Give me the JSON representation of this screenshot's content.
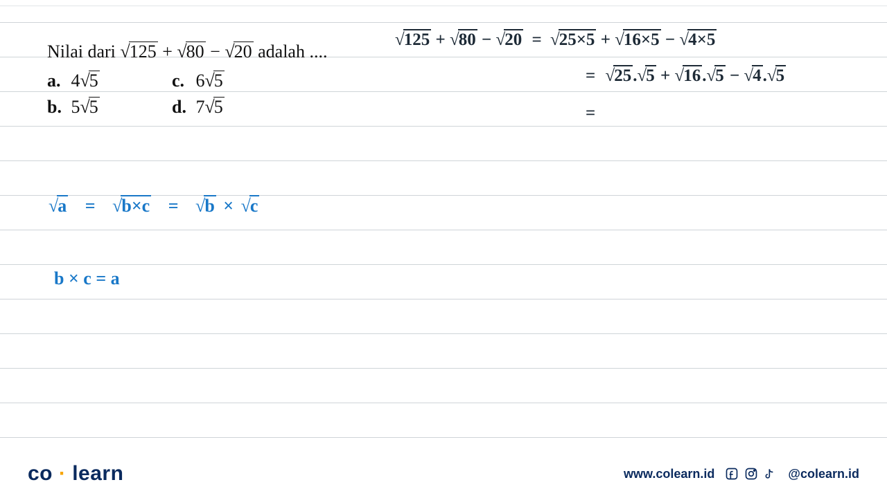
{
  "colors": {
    "rule_line": "#cfd4d8",
    "handwriting_blue": "#1978c8",
    "handwriting_dark": "#1d2a36",
    "print_text": "#111111",
    "brand_navy": "#0a2a5e",
    "brand_orange": "#f7a400",
    "background": "#ffffff"
  },
  "ruled_lines_y": [
    32,
    82,
    132,
    182,
    232,
    282,
    332,
    382,
    432,
    482,
    532,
    582,
    632
  ],
  "problem": {
    "prompt_prefix": "Nilai dari ",
    "expr_terms": [
      {
        "sign": "",
        "radicand": "125"
      },
      {
        "sign": "+",
        "radicand": "80"
      },
      {
        "sign": "−",
        "radicand": "20"
      }
    ],
    "prompt_suffix": " adalah ....",
    "options": [
      {
        "label": "a.",
        "coef": "4",
        "radicand": "5"
      },
      {
        "label": "c.",
        "coef": "6",
        "radicand": "5"
      },
      {
        "label": "b.",
        "coef": "5",
        "radicand": "5"
      },
      {
        "label": "d.",
        "coef": "7",
        "radicand": "5"
      }
    ]
  },
  "work_dark": {
    "line1": {
      "lhs": [
        {
          "sign": "",
          "rad": "125"
        },
        {
          "sign": "+",
          "rad": "80"
        },
        {
          "sign": "−",
          "rad": "20"
        }
      ],
      "rhs": [
        {
          "sign": "",
          "rad": "25×5"
        },
        {
          "sign": "+",
          "rad": "16×5"
        },
        {
          "sign": "−",
          "rad": "4×5"
        }
      ]
    },
    "line2_rhs": [
      {
        "sign": "",
        "a": "25",
        "b": "5"
      },
      {
        "sign": "+",
        "a": "16",
        "b": "5"
      },
      {
        "sign": "−",
        "a": "4",
        "b": "5"
      }
    ],
    "line3_eq": "="
  },
  "work_blue": {
    "rule_line": {
      "a": "a",
      "bc": "b×c",
      "b": "b",
      "c": "c"
    },
    "bc_eq": "b × c = a"
  },
  "footer": {
    "logo_co": "co",
    "logo_learn": "learn",
    "url": "www.colearn.id",
    "handle": "@colearn.id"
  }
}
